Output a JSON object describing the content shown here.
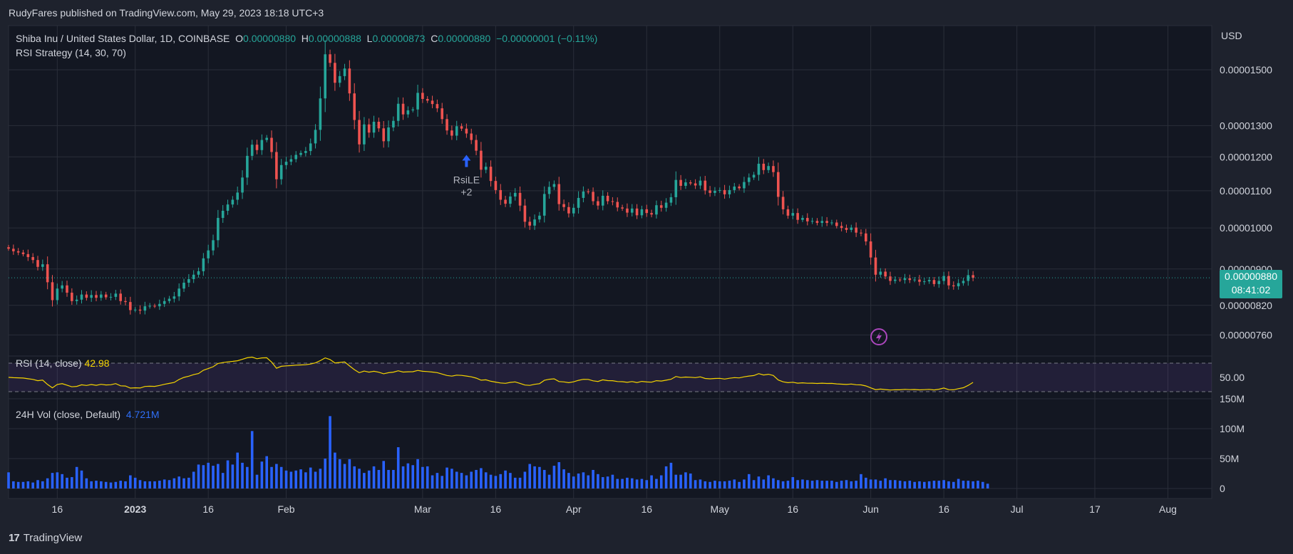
{
  "publisher_line": "RudyFares published on TradingView.com, May 29, 2023 18:18 UTC+3",
  "footer_brand": "TradingView",
  "legend": {
    "symbol": "Shiba Inu / United States Dollar, 1D, COINBASE",
    "o_label": "O",
    "o": "0.00000880",
    "h_label": "H",
    "h": "0.00000888",
    "l_label": "L",
    "l": "0.00000873",
    "c_label": "C",
    "c": "0.00000880",
    "change": "−0.00000001 (−0.11%)",
    "strategy": "RSI Strategy (14, 30, 70)"
  },
  "currency": "USD",
  "last_price": {
    "price": "0.00000880",
    "countdown": "08:41:02"
  },
  "signal": {
    "label": "RsiLE",
    "count": "+2",
    "date": "2023-03-10"
  },
  "rsi_legend": {
    "name": "RSI (14, close)",
    "value": "42.98"
  },
  "vol_legend": {
    "name": "24H Vol (close, Default)",
    "value": "4.721M"
  },
  "colors": {
    "up": "#26a69a",
    "down": "#ef5350",
    "rsi": "#f5d400",
    "volume": "#2962ff",
    "rsi_band": "#7e57c2"
  },
  "chart_data": {
    "type": "candlestick",
    "title": "Shiba Inu / United States Dollar, 1D, COINBASE",
    "x_start": "2022-12-06",
    "x_end": "2023-08-10",
    "x_tick_labels": [
      "16",
      "2023",
      "16",
      "Feb",
      "Mar",
      "16",
      "Apr",
      "16",
      "May",
      "16",
      "Jun",
      "16",
      "Jul",
      "17",
      "Aug"
    ],
    "x_tick_dates": [
      "2022-12-16",
      "2023-01-01",
      "2023-01-16",
      "2023-02-01",
      "2023-03-01",
      "2023-03-16",
      "2023-04-01",
      "2023-04-16",
      "2023-05-01",
      "2023-05-16",
      "2023-06-01",
      "2023-06-16",
      "2023-07-01",
      "2023-07-17",
      "2023-08-01"
    ],
    "price_axis": {
      "scale": "log",
      "range": [
        7.2e-06,
        1.68e-05
      ],
      "ticks": [
        "0.00001500",
        "0.00001300",
        "0.00001200",
        "0.00001100",
        "0.00001000",
        "0.00000900",
        "0.00000820",
        "0.00000760"
      ]
    },
    "rsi_axis": {
      "range": [
        20,
        80
      ],
      "ticks": [
        "50.00"
      ],
      "upper_band": 70,
      "lower_band": 30
    },
    "volume_axis": {
      "range": [
        0,
        150
      ],
      "unit": "M",
      "ticks": [
        "150M",
        "100M",
        "50M",
        "0"
      ]
    },
    "close": [
      9.48e-06,
      9.42e-06,
      9.39e-06,
      9.35e-06,
      9.28e-06,
      9.21e-06,
      9.05e-06,
      9.11e-06,
      8.7e-06,
      8.31e-06,
      8.56e-06,
      8.63e-06,
      8.47e-06,
      8.29e-06,
      8.32e-06,
      8.43e-06,
      8.36e-06,
      8.42e-06,
      8.36e-06,
      8.43e-06,
      8.37e-06,
      8.38e-06,
      8.45e-06,
      8.29e-06,
      8.27e-06,
      8.1e-06,
      8.11e-06,
      8.09e-06,
      8.18e-06,
      8.19e-06,
      8.18e-06,
      8.23e-06,
      8.29e-06,
      8.34e-06,
      8.39e-06,
      8.56e-06,
      8.69e-06,
      8.77e-06,
      8.87e-06,
      8.95e-06,
      9.25e-06,
      9.44e-06,
      9.69e-06,
      1.026e-05,
      1.045e-05,
      1.062e-05,
      1.075e-05,
      1.095e-05,
      1.138e-05,
      1.203e-05,
      1.238e-05,
      1.221e-05,
      1.253e-05,
      1.26e-05,
      1.215e-05,
      1.133e-05,
      1.175e-05,
      1.185e-05,
      1.193e-05,
      1.206e-05,
      1.212e-05,
      1.218e-05,
      1.242e-05,
      1.286e-05,
      1.394e-05,
      1.561e-05,
      1.527e-05,
      1.451e-05,
      1.476e-05,
      1.505e-05,
      1.412e-05,
      1.319e-05,
      1.239e-05,
      1.304e-05,
      1.277e-05,
      1.313e-05,
      1.291e-05,
      1.249e-05,
      1.294e-05,
      1.316e-05,
      1.375e-05,
      1.338e-05,
      1.352e-05,
      1.355e-05,
      1.414e-05,
      1.392e-05,
      1.386e-05,
      1.374e-05,
      1.359e-05,
      1.322e-05,
      1.284e-05,
      1.267e-05,
      1.298e-05,
      1.29e-05,
      1.274e-05,
      1.253e-05,
      1.219e-05,
      1.161e-05,
      1.17e-05,
      1.128e-05,
      1.102e-05,
      1.075e-05,
      1.064e-05,
      1.084e-05,
      1.094e-05,
      1.059e-05,
      1.016e-05,
      1.006e-05,
      1.022e-05,
      1.032e-05,
      1.091e-05,
      1.111e-05,
      1.119e-05,
      1.063e-05,
      1.055e-05,
      1.038e-05,
      1.053e-05,
      1.08e-05,
      1.098e-05,
      1.097e-05,
      1.071e-05,
      1.059e-05,
      1.086e-05,
      1.071e-05,
      1.069e-05,
      1.054e-05,
      1.051e-05,
      1.04e-05,
      1.051e-05,
      1.033e-05,
      1.049e-05,
      1.039e-05,
      1.035e-05,
      1.06e-05,
      1.053e-05,
      1.067e-05,
      1.082e-05,
      1.131e-05,
      1.114e-05,
      1.124e-05,
      1.121e-05,
      1.115e-05,
      1.129e-05,
      1.101e-05,
      1.094e-05,
      1.1e-05,
      1.102e-05,
      1.09e-05,
      1.102e-05,
      1.112e-05,
      1.107e-05,
      1.125e-05,
      1.138e-05,
      1.146e-05,
      1.179e-05,
      1.16e-05,
      1.172e-05,
      1.154e-05,
      1.083e-05,
      1.049e-05,
      1.032e-05,
      1.039e-05,
      1.021e-05,
      1.026e-05,
      1.017e-05,
      1.018e-05,
      1.013e-05,
      1.018e-05,
      1.013e-05,
      1.014e-05,
      1.005e-05,
      1e-05,
      9.95e-06,
      1.001e-05,
      9.88e-06,
      9.86e-06,
      9.66e-06,
      9.27e-06,
      8.87e-06,
      8.94e-06,
      8.83e-06,
      8.73e-06,
      8.76e-06,
      8.75e-06,
      8.79e-06,
      8.75e-06,
      8.76e-06,
      8.71e-06,
      8.72e-06,
      8.75e-06,
      8.66e-06,
      8.73e-06,
      8.84e-06,
      8.63e-06,
      8.61e-06,
      8.68e-06,
      8.73e-06,
      8.86e-06,
      8.8e-06
    ],
    "rsi": [
      50.1,
      49.6,
      49.4,
      49.1,
      48.1,
      47.2,
      45.4,
      46.2,
      40.1,
      35.4,
      40.1,
      41.2,
      39.1,
      36.8,
      37.4,
      39.6,
      38.7,
      40.0,
      38.9,
      40.3,
      39.4,
      39.7,
      41.3,
      38.2,
      37.9,
      35.0,
      35.4,
      35.1,
      37.3,
      37.6,
      37.4,
      38.7,
      40.3,
      41.6,
      42.9,
      47.1,
      50.0,
      51.7,
      53.9,
      55.4,
      60.1,
      62.4,
      65.0,
      69.6,
      70.8,
      71.8,
      72.5,
      73.4,
      75.4,
      77.6,
      78.5,
      76.2,
      77.4,
      77.6,
      71.6,
      62.9,
      65.6,
      66.2,
      66.6,
      67.2,
      67.5,
      67.8,
      68.8,
      70.4,
      73.6,
      77.4,
      75.1,
      70.3,
      71.0,
      71.8,
      66.1,
      60.9,
      56.6,
      58.9,
      57.4,
      58.6,
      57.3,
      55.1,
      56.6,
      57.4,
      59.3,
      57.5,
      57.9,
      58.0,
      59.8,
      58.6,
      58.2,
      57.5,
      56.7,
      54.7,
      52.7,
      51.8,
      53.2,
      52.8,
      51.9,
      50.8,
      49.0,
      46.1,
      46.6,
      44.6,
      43.4,
      42.2,
      41.7,
      43.0,
      43.7,
      41.6,
      39.3,
      38.8,
      40.3,
      41.2,
      45.9,
      47.4,
      48.0,
      44.2,
      43.7,
      42.6,
      43.8,
      45.9,
      47.3,
      47.2,
      45.2,
      44.3,
      46.6,
      45.5,
      45.4,
      44.2,
      44.0,
      43.1,
      44.2,
      42.8,
      44.4,
      43.6,
      43.3,
      45.4,
      44.9,
      46.1,
      47.4,
      51.3,
      49.8,
      50.5,
      50.2,
      49.7,
      50.8,
      48.5,
      48.0,
      48.5,
      48.7,
      47.7,
      48.8,
      49.7,
      49.3,
      50.8,
      51.9,
      52.6,
      55.3,
      53.4,
      54.4,
      52.7,
      46.4,
      43.8,
      42.6,
      43.2,
      41.9,
      42.4,
      41.8,
      41.9,
      41.5,
      41.9,
      41.5,
      41.6,
      40.9,
      40.5,
      40.1,
      40.7,
      39.7,
      39.5,
      38.0,
      35.3,
      32.8,
      33.6,
      32.9,
      32.3,
      32.7,
      32.6,
      33.2,
      32.8,
      33.0,
      32.5,
      32.8,
      33.2,
      32.4,
      33.4,
      35.1,
      32.8,
      32.6,
      34.2,
      35.5,
      38.8,
      42.98
    ],
    "volume_m": [
      27,
      12,
      11,
      11,
      12,
      10,
      14,
      12,
      17,
      26,
      27,
      24,
      18,
      19,
      36,
      30,
      17,
      12,
      13,
      12,
      11,
      10,
      11,
      13,
      12,
      22,
      18,
      14,
      12,
      12,
      12,
      13,
      15,
      14,
      17,
      20,
      17,
      18,
      28,
      40,
      39,
      43,
      38,
      41,
      26,
      47,
      40,
      60,
      43,
      36,
      96,
      23,
      45,
      54,
      36,
      41,
      36,
      30,
      28,
      30,
      32,
      27,
      35,
      28,
      33,
      50,
      121,
      60,
      49,
      41,
      49,
      37,
      33,
      26,
      30,
      37,
      31,
      46,
      31,
      31,
      69,
      37,
      42,
      39,
      49,
      36,
      37,
      22,
      26,
      21,
      35,
      33,
      28,
      26,
      22,
      28,
      31,
      34,
      27,
      23,
      21,
      24,
      30,
      26,
      18,
      18,
      28,
      41,
      37,
      36,
      31,
      23,
      38,
      44,
      32,
      26,
      20,
      25,
      27,
      22,
      31,
      24,
      19,
      20,
      23,
      16,
      16,
      18,
      17,
      15,
      16,
      14,
      22,
      16,
      22,
      37,
      43,
      23,
      23,
      27,
      25,
      14,
      15,
      12,
      11,
      13,
      12,
      12,
      13,
      15,
      11,
      15,
      24,
      14,
      20,
      15,
      22,
      17,
      14,
      12,
      13,
      19,
      14,
      15,
      14,
      13,
      14,
      13,
      13,
      13,
      11,
      13,
      14,
      12,
      13,
      24,
      18,
      15,
      15,
      13,
      17,
      14,
      14,
      13,
      12,
      13,
      11,
      12,
      11,
      12,
      13,
      13,
      14,
      12,
      11,
      16,
      13,
      13,
      12,
      13,
      11,
      8
    ]
  }
}
